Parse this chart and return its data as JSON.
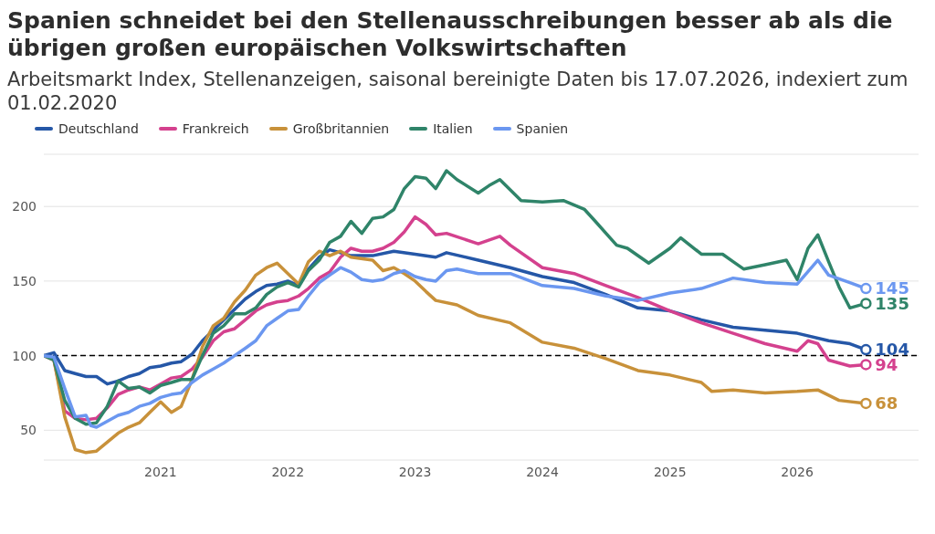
{
  "chart_data": {
    "type": "line",
    "title": "Spanien schneidet bei den Stellenausschreibungen besser ab als die übrigen großen europäischen Volkswirtschaften",
    "subtitle": "Arbeitsmarkt Index, Stellenanzeigen, saisonal bereinigte Daten bis 17.07.2026, indexiert zum 01.02.2020",
    "xlim": [
      "2020-02-01",
      "2026-12-15"
    ],
    "xticks": [
      "2021",
      "2022",
      "2023",
      "2024",
      "2025",
      "2026"
    ],
    "ylim": [
      30,
      235
    ],
    "yticks": [
      50,
      100,
      150,
      200
    ],
    "grid": "y",
    "legend": "top left",
    "line_style": "solid",
    "marker": "none",
    "ref_lines": [
      {
        "axis": "y",
        "value": 100,
        "color": "#000000",
        "line_style": "dashed"
      }
    ],
    "series": [
      {
        "name": "Deutschland",
        "color": "#2557a7",
        "x": [
          "2020-02-01",
          "2020-03",
          "2020-04",
          "2020-05",
          "2020-06",
          "2020-07",
          "2020-08",
          "2020-09",
          "2020-10",
          "2020-11",
          "2020-12",
          "2021-01",
          "2021-02",
          "2021-03",
          "2021-04",
          "2021-05",
          "2021-06",
          "2021-07",
          "2021-08",
          "2021-09",
          "2021-10",
          "2021-11",
          "2021-12",
          "2022-01",
          "2022-02",
          "2022-03",
          "2022-04",
          "2022-05",
          "2022-06",
          "2022-07",
          "2022-09",
          "2022-11",
          "2023-01",
          "2023-03",
          "2023-04",
          "2023-07",
          "2023-10",
          "2024-01",
          "2024-04",
          "2024-07",
          "2024-10",
          "2025-01",
          "2025-04",
          "2025-07",
          "2025-10",
          "2026-01",
          "2026-04",
          "2026-06",
          "2026-07-17"
        ],
        "values": [
          100,
          102,
          90,
          88,
          86,
          86,
          81,
          83,
          86,
          88,
          92,
          93,
          95,
          96,
          101,
          110,
          117,
          124,
          131,
          138,
          143,
          147,
          148,
          150,
          147,
          158,
          166,
          171,
          169,
          167,
          167,
          170,
          168,
          166,
          169,
          164,
          159,
          153,
          149,
          141,
          132,
          130,
          124,
          119,
          117,
          115,
          110,
          108,
          104
        ],
        "value_labels": [
          null,
          null,
          null,
          null,
          null,
          null,
          null,
          null,
          null,
          null,
          null,
          null,
          null,
          null,
          null,
          null,
          null,
          null,
          null,
          null,
          null,
          null,
          null,
          null,
          null,
          null,
          null,
          null,
          null,
          null,
          null,
          null,
          null,
          null,
          null,
          null,
          null,
          null,
          null,
          null,
          null,
          null,
          null,
          null,
          null,
          null,
          null,
          null,
          "104"
        ]
      },
      {
        "name": "Frankreich",
        "color": "#d4418e",
        "x": [
          "2020-02-01",
          "2020-03",
          "2020-04",
          "2020-05",
          "2020-06",
          "2020-07",
          "2020-08",
          "2020-09",
          "2020-10",
          "2020-11",
          "2020-12",
          "2021-01",
          "2021-02",
          "2021-03",
          "2021-04",
          "2021-05",
          "2021-06",
          "2021-07",
          "2021-08",
          "2021-09",
          "2021-10",
          "2021-11",
          "2021-12",
          "2022-01",
          "2022-02",
          "2022-03",
          "2022-04",
          "2022-05",
          "2022-06",
          "2022-07",
          "2022-08",
          "2022-09",
          "2022-10",
          "2022-11",
          "2022-12",
          "2023-01",
          "2023-02",
          "2023-03",
          "2023-04",
          "2023-07",
          "2023-09",
          "2023-10",
          "2024-01",
          "2024-04",
          "2024-07",
          "2024-10",
          "2025-01",
          "2025-04",
          "2025-07",
          "2025-10",
          "2026-01",
          "2026-02",
          "2026-03",
          "2026-04",
          "2026-06",
          "2026-07-17"
        ],
        "values": [
          100,
          97,
          63,
          58,
          57,
          58,
          65,
          74,
          77,
          79,
          77,
          81,
          85,
          86,
          91,
          99,
          110,
          116,
          118,
          124,
          130,
          134,
          136,
          137,
          140,
          145,
          152,
          156,
          166,
          172,
          170,
          170,
          172,
          176,
          183,
          193,
          188,
          181,
          182,
          175,
          180,
          174,
          159,
          155,
          147,
          139,
          130,
          122,
          115,
          108,
          103,
          110,
          108,
          97,
          93,
          94
        ],
        "value_labels": [
          null,
          null,
          null,
          null,
          null,
          null,
          null,
          null,
          null,
          null,
          null,
          null,
          null,
          null,
          null,
          null,
          null,
          null,
          null,
          null,
          null,
          null,
          null,
          null,
          null,
          null,
          null,
          null,
          null,
          null,
          null,
          null,
          null,
          null,
          null,
          null,
          null,
          null,
          null,
          null,
          null,
          null,
          null,
          null,
          null,
          null,
          null,
          null,
          null,
          null,
          null,
          null,
          null,
          null,
          null,
          "94"
        ]
      },
      {
        "name": "Großbritannien",
        "color": "#c8913a",
        "x": [
          "2020-02-01",
          "2020-03",
          "2020-04",
          "2020-05",
          "2020-06",
          "2020-07",
          "2020-08",
          "2020-09",
          "2020-10",
          "2020-11",
          "2020-12",
          "2021-01",
          "2021-02",
          "2021-03",
          "2021-04",
          "2021-05",
          "2021-06",
          "2021-07",
          "2021-08",
          "2021-09",
          "2021-10",
          "2021-11",
          "2021-12",
          "2022-01",
          "2022-02",
          "2022-03",
          "2022-04",
          "2022-05",
          "2022-06",
          "2022-07",
          "2022-09",
          "2022-10",
          "2022-11",
          "2022-12",
          "2023-01",
          "2023-02",
          "2023-03",
          "2023-05",
          "2023-07",
          "2023-10",
          "2024-01",
          "2024-04",
          "2024-07",
          "2024-10",
          "2025-01",
          "2025-04",
          "2025-05",
          "2025-07",
          "2025-10",
          "2026-01",
          "2026-03",
          "2026-05",
          "2026-07-17"
        ],
        "values": [
          100,
          97,
          59,
          37,
          35,
          36,
          42,
          48,
          52,
          55,
          62,
          69,
          62,
          66,
          84,
          106,
          120,
          125,
          136,
          144,
          154,
          159,
          162,
          155,
          148,
          163,
          170,
          167,
          170,
          166,
          164,
          157,
          159,
          155,
          150,
          143,
          137,
          134,
          127,
          122,
          109,
          105,
          98,
          90,
          87,
          82,
          76,
          77,
          75,
          76,
          77,
          70,
          68
        ],
        "value_labels": [
          null,
          null,
          null,
          null,
          null,
          null,
          null,
          null,
          null,
          null,
          null,
          null,
          null,
          null,
          null,
          null,
          null,
          null,
          null,
          null,
          null,
          null,
          null,
          null,
          null,
          null,
          null,
          null,
          null,
          null,
          null,
          null,
          null,
          null,
          null,
          null,
          null,
          null,
          null,
          null,
          null,
          null,
          null,
          null,
          null,
          null,
          null,
          null,
          null,
          null,
          null,
          null,
          "68"
        ]
      },
      {
        "name": "Italien",
        "color": "#2f8469",
        "x": [
          "2020-02-01",
          "2020-03",
          "2020-04",
          "2020-05",
          "2020-06",
          "2020-07",
          "2020-08",
          "2020-09",
          "2020-10",
          "2020-11",
          "2020-12",
          "2021-01",
          "2021-02",
          "2021-03",
          "2021-04",
          "2021-05",
          "2021-06",
          "2021-07",
          "2021-08",
          "2021-09",
          "2021-10",
          "2021-11",
          "2021-12",
          "2022-01",
          "2022-02",
          "2022-03",
          "2022-04",
          "2022-05",
          "2022-06",
          "2022-07",
          "2022-08",
          "2022-09",
          "2022-10",
          "2022-11",
          "2022-12",
          "2023-01",
          "2023-02",
          "2023-03",
          "2023-04",
          "2023-05",
          "2023-07",
          "2023-08",
          "2023-09",
          "2023-11",
          "2024-01",
          "2024-03",
          "2024-05",
          "2024-06",
          "2024-08",
          "2024-09",
          "2024-11",
          "2025-01",
          "2025-02",
          "2025-04",
          "2025-06",
          "2025-07",
          "2025-08",
          "2025-10",
          "2025-12",
          "2026-01",
          "2026-02",
          "2026-03",
          "2026-04",
          "2026-05",
          "2026-06",
          "2026-07-17"
        ],
        "values": [
          100,
          97,
          70,
          58,
          54,
          55,
          66,
          83,
          78,
          79,
          75,
          80,
          82,
          84,
          84,
          100,
          115,
          120,
          128,
          128,
          132,
          141,
          146,
          149,
          146,
          157,
          164,
          176,
          180,
          190,
          182,
          192,
          193,
          198,
          212,
          220,
          219,
          212,
          224,
          218,
          209,
          214,
          218,
          204,
          203,
          204,
          198,
          190,
          174,
          172,
          162,
          172,
          179,
          168,
          168,
          163,
          158,
          161,
          164,
          151,
          172,
          181,
          163,
          146,
          132,
          135
        ],
        "value_labels": [
          null,
          null,
          null,
          null,
          null,
          null,
          null,
          null,
          null,
          null,
          null,
          null,
          null,
          null,
          null,
          null,
          null,
          null,
          null,
          null,
          null,
          null,
          null,
          null,
          null,
          null,
          null,
          null,
          null,
          null,
          null,
          null,
          null,
          null,
          null,
          null,
          null,
          null,
          null,
          null,
          null,
          null,
          null,
          null,
          null,
          null,
          null,
          null,
          null,
          null,
          null,
          null,
          null,
          null,
          null,
          null,
          null,
          null,
          null,
          null,
          null,
          null,
          null,
          null,
          null,
          "135"
        ]
      },
      {
        "name": "Spanien",
        "color": "#6b97f0",
        "x": [
          "2020-02-01",
          "2020-03",
          "2020-04",
          "2020-05",
          "2020-06",
          "2020-06-15",
          "2020-07",
          "2020-08",
          "2020-09",
          "2020-10",
          "2020-11",
          "2020-12",
          "2021-01",
          "2021-02",
          "2021-03",
          "2021-04",
          "2021-05",
          "2021-06",
          "2021-07",
          "2021-08",
          "2021-09",
          "2021-10",
          "2021-11",
          "2021-12",
          "2022-01",
          "2022-02",
          "2022-03",
          "2022-04",
          "2022-05",
          "2022-06",
          "2022-07",
          "2022-08",
          "2022-09",
          "2022-10",
          "2022-11",
          "2022-12",
          "2023-01",
          "2023-02",
          "2023-03",
          "2023-04",
          "2023-05",
          "2023-07",
          "2023-10",
          "2024-01",
          "2024-04",
          "2024-07",
          "2024-10",
          "2025-01",
          "2025-04",
          "2025-07",
          "2025-10",
          "2026-01",
          "2026-03",
          "2026-04",
          "2026-06",
          "2026-07-17"
        ],
        "values": [
          100,
          99,
          78,
          59,
          60,
          53,
          52,
          56,
          60,
          62,
          66,
          68,
          72,
          74,
          75,
          82,
          87,
          91,
          95,
          100,
          105,
          110,
          120,
          125,
          130,
          131,
          140,
          149,
          154,
          159,
          156,
          151,
          150,
          151,
          155,
          157,
          153,
          151,
          150,
          157,
          158,
          155,
          155,
          147,
          145,
          140,
          137,
          142,
          145,
          152,
          149,
          148,
          164,
          154,
          149,
          145
        ],
        "value_labels": [
          null,
          null,
          null,
          null,
          null,
          null,
          null,
          null,
          null,
          null,
          null,
          null,
          null,
          null,
          null,
          null,
          null,
          null,
          null,
          null,
          null,
          null,
          null,
          null,
          null,
          null,
          null,
          null,
          null,
          null,
          null,
          null,
          null,
          null,
          null,
          null,
          null,
          null,
          null,
          null,
          null,
          null,
          null,
          null,
          null,
          null,
          null,
          null,
          null,
          null,
          null,
          null,
          null,
          null,
          null,
          "145"
        ]
      }
    ]
  }
}
